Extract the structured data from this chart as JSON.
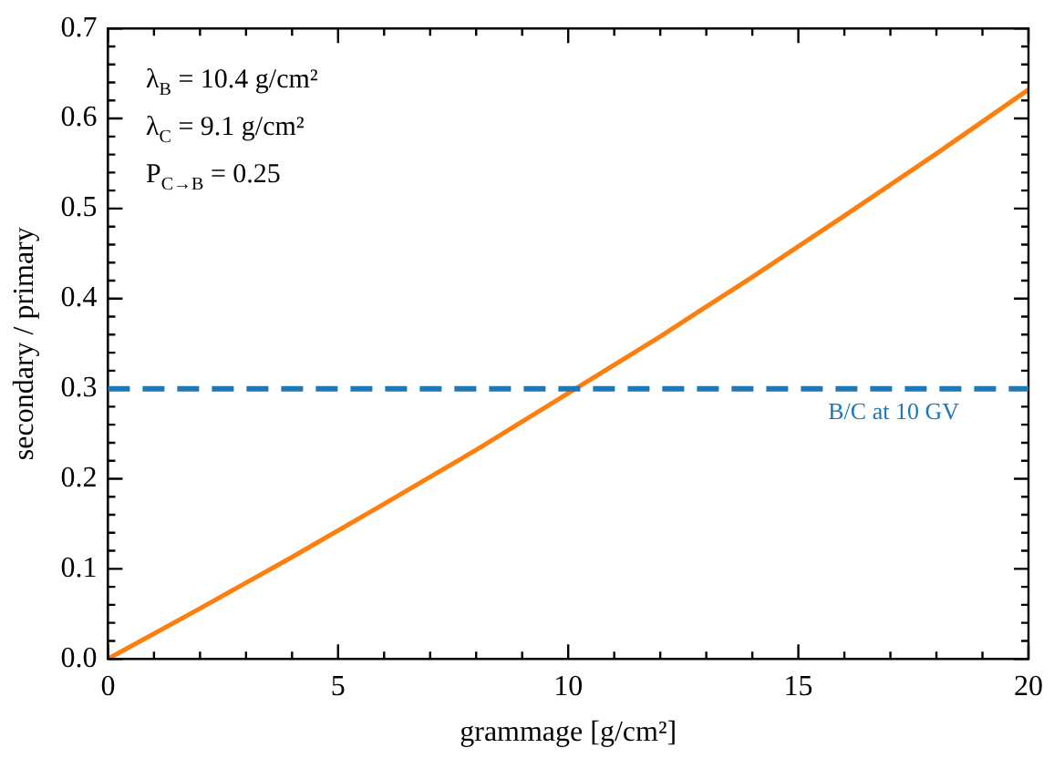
{
  "chart_data": {
    "type": "line",
    "xlabel": "grammage [g/cm²]",
    "ylabel": "secondary / primary",
    "x": [
      0,
      2,
      4,
      6,
      8,
      10,
      12,
      14,
      16,
      18,
      20
    ],
    "series": [
      {
        "color": "#ff7f0e",
        "values": [
          0,
          0.056,
          0.113,
          0.172,
          0.232,
          0.295,
          0.358,
          0.424,
          0.492,
          0.561,
          0.632
        ]
      }
    ],
    "xlim": [
      0,
      20
    ],
    "xticks": [
      0,
      5,
      10,
      15,
      20
    ],
    "ylim": [
      0,
      0.7
    ],
    "yticks": [
      {
        "value": 0,
        "label": "0.0"
      },
      0.1,
      0.2,
      0.3,
      0.4,
      0.5,
      0.6,
      0.7
    ],
    "ref_lines": [
      {
        "axis": "y",
        "value": 0.3,
        "label": "B/C at 10 GV",
        "color": "#1f77b4",
        "line_style": "dashed"
      }
    ],
    "annotations": [
      "λ$_{B}$ = 10.4 g/cm²",
      "λ$_{C}$ = 9.1 g/cm²",
      "P$_{C→B}$ = 0.25"
    ],
    "grid": false,
    "legend": false,
    "marker": "none",
    "line_style": "solid"
  }
}
